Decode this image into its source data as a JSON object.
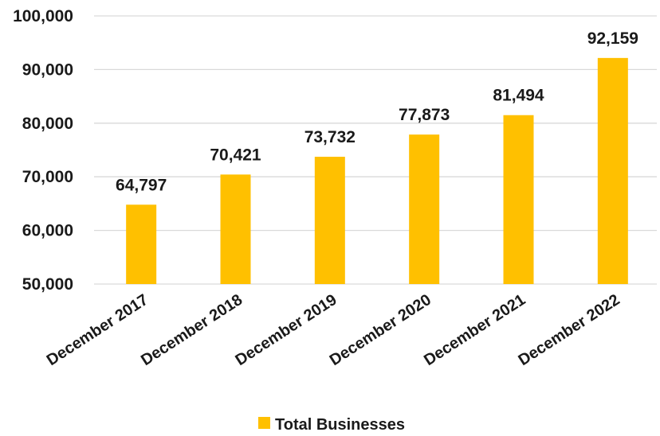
{
  "chart_data": {
    "type": "bar",
    "categories": [
      "December 2017",
      "December 2018",
      "December 2019",
      "December 2020",
      "December 2021",
      "December 2022"
    ],
    "series": [
      {
        "name": "Total Businesses",
        "values": [
          64797,
          70421,
          73732,
          77873,
          81494,
          92159
        ],
        "data_labels": [
          "64,797",
          "70,421",
          "73,732",
          "77,873",
          "81,494",
          "92,159"
        ],
        "color": "#FFC000"
      }
    ],
    "y_ticks": [
      "50,000",
      "60,000",
      "70,000",
      "80,000",
      "90,000",
      "100,000"
    ],
    "y_tick_values": [
      50000,
      60000,
      70000,
      80000,
      90000,
      100000
    ],
    "ylim": [
      50000,
      100000
    ],
    "grid": true,
    "legend_position": "bottom",
    "title": "",
    "xlabel": "",
    "ylabel": ""
  }
}
